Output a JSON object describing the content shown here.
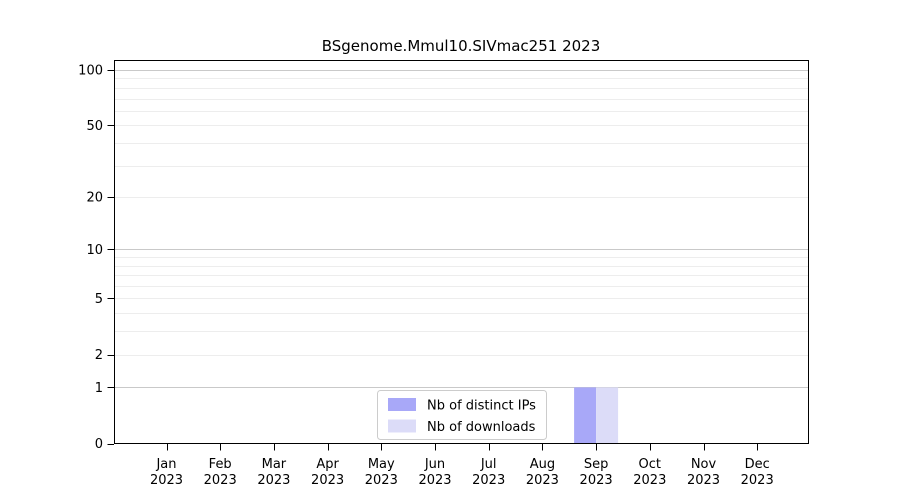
{
  "chart_data": {
    "type": "bar",
    "title": "BSgenome.Mmul10.SIVmac251 2023",
    "categories": [
      "Jan 2023",
      "Feb 2023",
      "Mar 2023",
      "Apr 2023",
      "May 2023",
      "Jun 2023",
      "Jul 2023",
      "Aug 2023",
      "Sep 2023",
      "Oct 2023",
      "Nov 2023",
      "Dec 2023"
    ],
    "series": [
      {
        "name": "Nb of distinct IPs",
        "color": "#a8a8f8",
        "values": [
          0,
          0,
          0,
          0,
          0,
          0,
          0,
          0,
          1,
          0,
          0,
          0
        ]
      },
      {
        "name": "Nb of downloads",
        "color": "#dcdcf8",
        "values": [
          0,
          0,
          0,
          0,
          0,
          0,
          0,
          0,
          1,
          0,
          0,
          0
        ]
      }
    ],
    "xlabel": "",
    "ylabel": "",
    "yscale": "log1p",
    "ylim": [
      0,
      100
    ],
    "yticks": [
      0,
      1,
      2,
      5,
      10,
      20,
      50,
      100
    ],
    "gridlines": {
      "minor": [
        2,
        3,
        4,
        5,
        6,
        7,
        8,
        9,
        10,
        20,
        30,
        40,
        50,
        60,
        70,
        80,
        90
      ],
      "major": [
        1,
        10,
        100
      ]
    },
    "grid": true,
    "legend_position": "bottom-center-inside",
    "colors": {
      "axis": "#000000",
      "tick_text": "#000000",
      "grid_minor": "#ededed",
      "grid_major": "#c9c9c9",
      "legend_border": "#cccccc",
      "legend_background": "#ffffff",
      "plot_background": "#ffffff"
    }
  }
}
